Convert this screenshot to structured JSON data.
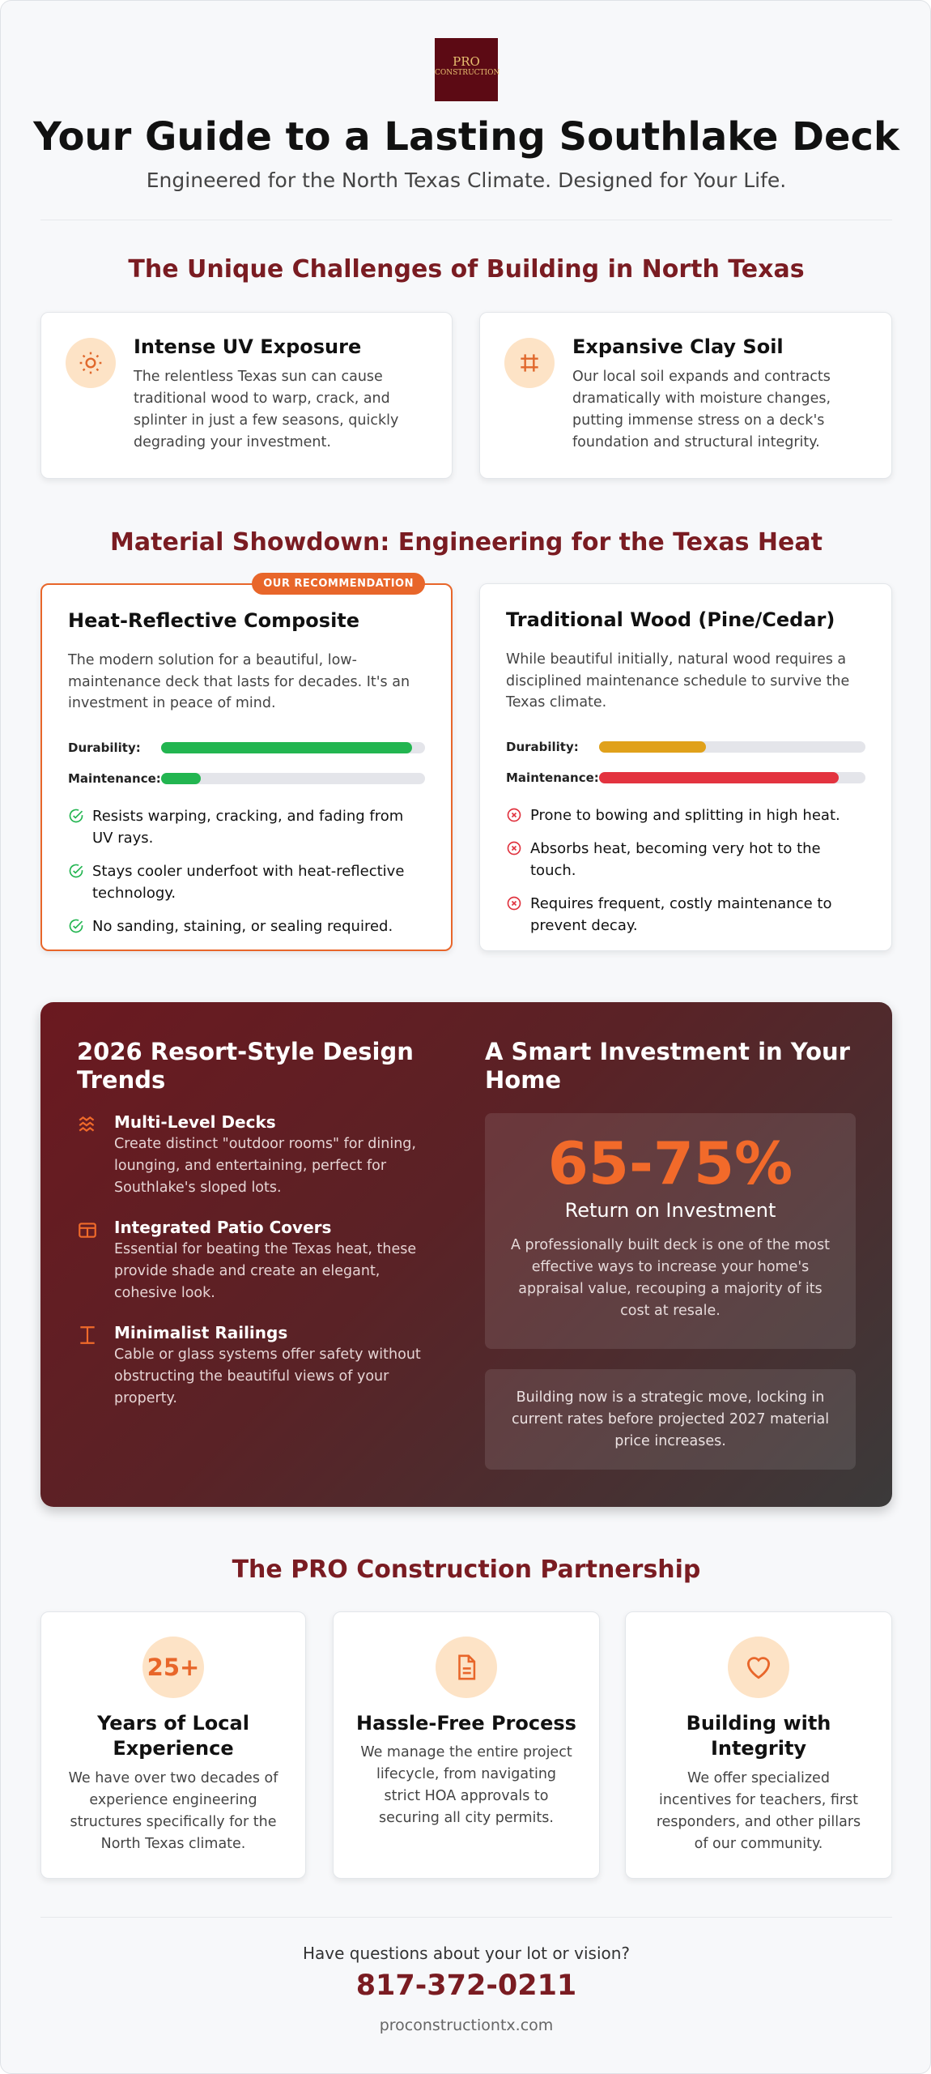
{
  "header": {
    "logo_line1": "PRO",
    "logo_line2": "CONSTRUCTION",
    "title": "Your Guide to a Lasting Southlake Deck",
    "subtitle": "Engineered for the North Texas Climate. Designed for Your Life."
  },
  "challenges": {
    "heading": "The Unique Challenges of Building in North Texas",
    "items": [
      {
        "title": "Intense UV Exposure",
        "text": "The relentless Texas sun can cause traditional wood to warp, crack, and splinter in just a few seasons, quickly degrading your investment."
      },
      {
        "title": "Expansive Clay Soil",
        "text": "Our local soil expands and contracts dramatically with moisture changes, putting immense stress on a deck's foundation and structural integrity."
      }
    ]
  },
  "materials": {
    "heading": "Material Showdown: Engineering for the Texas Heat",
    "badge": "OUR RECOMMENDATION",
    "cards": [
      {
        "title": "Heat-Reflective Composite",
        "text": "The modern solution for a beautiful, low-maintenance deck that lasts for decades. It's an investment in peace of mind.",
        "metrics": [
          {
            "label": "Durability:",
            "value": 95,
            "color": "#22b550"
          },
          {
            "label": "Maintenance:",
            "value": 15,
            "color": "#22b550"
          }
        ],
        "points": [
          "Resists warping, cracking, and fading from UV rays.",
          "Stays cooler underfoot with heat-reflective technology.",
          "No sanding, staining, or sealing required."
        ]
      },
      {
        "title": "Traditional Wood (Pine/Cedar)",
        "text": "While beautiful initially, natural wood requires a disciplined maintenance schedule to survive the Texas climate.",
        "metrics": [
          {
            "label": "Durability:",
            "value": 40,
            "color": "#e0a11b"
          },
          {
            "label": "Maintenance:",
            "value": 90,
            "color": "#e3333f"
          }
        ],
        "points": [
          "Prone to bowing and splitting in high heat.",
          "Absorbs heat, becoming very hot to the touch.",
          "Requires frequent, costly maintenance to prevent decay."
        ]
      }
    ]
  },
  "trends": {
    "heading": "2026 Resort-Style Design Trends",
    "items": [
      {
        "title": "Multi-Level Decks",
        "text": "Create distinct \"outdoor rooms\" for dining, lounging, and entertaining, perfect for Southlake's sloped lots."
      },
      {
        "title": "Integrated Patio Covers",
        "text": "Essential for beating the Texas heat, these provide shade and create an elegant, cohesive look."
      },
      {
        "title": "Minimalist Railings",
        "text": "Cable or glass systems offer safety without obstructing the beautiful views of your property."
      }
    ]
  },
  "investment": {
    "heading": "A Smart Investment in Your Home",
    "stat": "65-75%",
    "stat_label": "Return on Investment",
    "text": "A professionally built deck is one of the most effective ways to increase your home's appraisal value, recouping a majority of its cost at resale.",
    "note": "Building now is a strategic move, locking in current rates before projected 2027 material price increases."
  },
  "partnership": {
    "heading": "The PRO Construction Partnership",
    "cards": [
      {
        "badge": "25+",
        "title": "Years of Local Experience",
        "text": "We have over two decades of experience engineering structures specifically for the North Texas climate."
      },
      {
        "title": "Hassle-Free Process",
        "text": "We manage the entire project lifecycle, from navigating strict HOA approvals to securing all city permits."
      },
      {
        "title": "Building with Integrity",
        "text": "We offer specialized incentives for teachers, first responders, and other pillars of our community."
      }
    ]
  },
  "footer": {
    "question": "Have questions about your lot or vision?",
    "phone": "817-372-0211",
    "website": "proconstructiontx.com"
  }
}
